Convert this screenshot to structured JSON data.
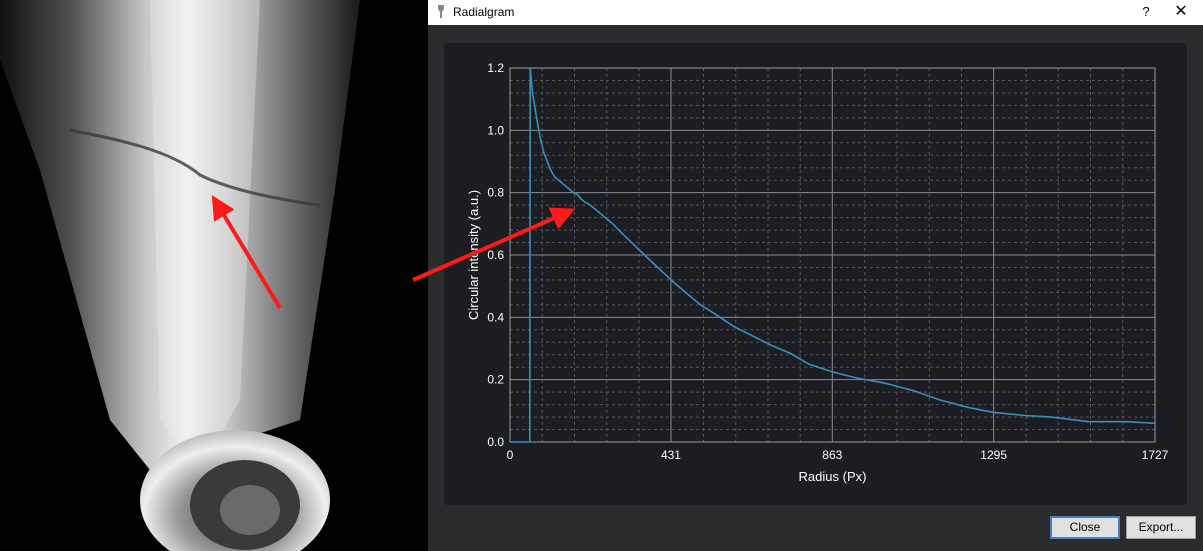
{
  "window": {
    "title": "Radialgram",
    "help_label": "?",
    "close_label": "✕"
  },
  "buttons": {
    "close_label": "Close",
    "export_label": "Export..."
  },
  "colors": {
    "series": "#3a8fb7",
    "arrow": "#ff1a1a",
    "chart_bg": "#1c1d22",
    "dialog_bg": "#2b2b2e"
  },
  "chart_data": {
    "type": "line",
    "title": "",
    "xlabel": "Radius (Px)",
    "ylabel": "Circular intensity (a.u.)",
    "xlim": [
      0,
      1727
    ],
    "ylim": [
      0,
      1.2
    ],
    "x_ticks": [
      "0",
      "431",
      "863",
      "1295",
      "1727"
    ],
    "y_ticks": [
      "0.0",
      "0.2",
      "0.4",
      "0.6",
      "0.8",
      "1.0",
      "1.2"
    ],
    "grid": true,
    "legend": "none",
    "series": [
      {
        "points": [
          [
            0,
            0
          ],
          [
            53,
            0
          ],
          [
            54,
            1.2
          ],
          [
            60,
            1.12
          ],
          [
            70,
            1.05
          ],
          [
            80,
            0.98
          ],
          [
            90,
            0.93
          ],
          [
            100,
            0.9
          ],
          [
            110,
            0.87
          ],
          [
            120,
            0.85
          ],
          [
            130,
            0.84
          ],
          [
            140,
            0.83
          ],
          [
            150,
            0.82
          ],
          [
            160,
            0.81
          ],
          [
            170,
            0.8
          ],
          [
            180,
            0.795
          ],
          [
            190,
            0.78
          ],
          [
            200,
            0.77
          ],
          [
            215,
            0.76
          ],
          [
            230,
            0.745
          ],
          [
            250,
            0.725
          ],
          [
            275,
            0.7
          ],
          [
            300,
            0.67
          ],
          [
            330,
            0.635
          ],
          [
            360,
            0.6
          ],
          [
            400,
            0.555
          ],
          [
            431,
            0.52
          ],
          [
            470,
            0.48
          ],
          [
            510,
            0.44
          ],
          [
            550,
            0.41
          ],
          [
            600,
            0.37
          ],
          [
            650,
            0.34
          ],
          [
            700,
            0.31
          ],
          [
            750,
            0.285
          ],
          [
            800,
            0.25
          ],
          [
            863,
            0.225
          ],
          [
            930,
            0.205
          ],
          [
            1000,
            0.19
          ],
          [
            1080,
            0.165
          ],
          [
            1150,
            0.135
          ],
          [
            1230,
            0.11
          ],
          [
            1295,
            0.095
          ],
          [
            1380,
            0.085
          ],
          [
            1450,
            0.08
          ],
          [
            1550,
            0.065
          ],
          [
            1650,
            0.065
          ],
          [
            1727,
            0.06
          ]
        ]
      }
    ]
  }
}
